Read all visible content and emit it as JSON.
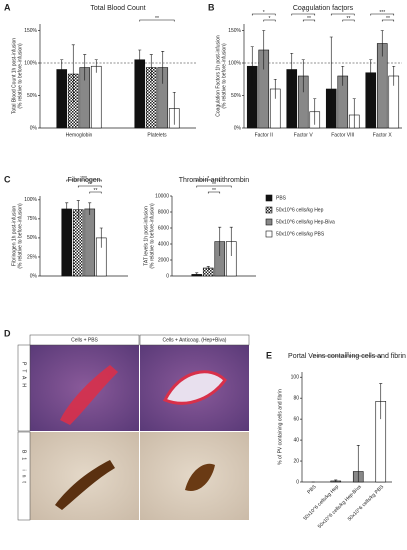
{
  "chart_data": [
    {
      "type": "bar",
      "panel": "A",
      "title": "Total Blood Count",
      "ylabel": [
        "Total Blood Count 1h post-infusion",
        "(% relative to before-infusion)"
      ],
      "categories": [
        "Hemoglobin",
        "Platelets"
      ],
      "series": [
        {
          "color": "#111111",
          "values": [
            90,
            105
          ],
          "errors": [
            15,
            15
          ]
        },
        {
          "color": "#444444",
          "pattern": "checker",
          "values": [
            83,
            93
          ],
          "errors": [
            45,
            20
          ]
        },
        {
          "color": "#888888",
          "values": [
            93,
            93
          ],
          "errors": [
            20,
            25
          ]
        },
        {
          "color": "#ffffff",
          "values": [
            95,
            30
          ],
          "errors": [
            10,
            25
          ]
        }
      ],
      "ylim": [
        0,
        160
      ],
      "yticks": [
        {
          "value": 0,
          "label": "0%"
        },
        {
          "value": 50,
          "label": "50%"
        },
        {
          "value": 100,
          "label": "100%"
        },
        {
          "value": 150,
          "label": "150%"
        }
      ],
      "reference_line": 100,
      "annotations": [
        "**"
      ]
    },
    {
      "type": "bar",
      "panel": "B",
      "title": "Coagulation factors",
      "ylabel": [
        "Coagulation Factors 1h post-infusion",
        "(% relative to before-infusion)"
      ],
      "categories": [
        "Factor II",
        "Factor V",
        "Factor VIII",
        "Factor X"
      ],
      "series": [
        {
          "color": "#111111",
          "values": [
            95,
            90,
            60,
            85
          ],
          "errors": [
            30,
            25,
            80,
            20
          ]
        },
        {
          "color": "#888888",
          "values": [
            120,
            80,
            80,
            130
          ],
          "errors": [
            30,
            25,
            15,
            20
          ]
        },
        {
          "color": "#ffffff",
          "values": [
            60,
            25,
            20,
            80
          ],
          "errors": [
            15,
            20,
            25,
            15
          ]
        }
      ],
      "ylim": [
        0,
        160
      ],
      "yticks": [
        {
          "value": 0,
          "label": "0%"
        },
        {
          "value": 50,
          "label": "50%"
        },
        {
          "value": 100,
          "label": "100%"
        },
        {
          "value": 150,
          "label": "150%"
        }
      ],
      "reference_line": 100,
      "annotations": [
        "*",
        "*",
        "*",
        "**",
        "*",
        "**",
        "***",
        "**"
      ]
    },
    {
      "type": "bar",
      "panel": "C",
      "title": "Fibrinogen",
      "ylabel": [
        "Fibrinogen 1h post-infusion",
        "(% relative to before-infusion)"
      ],
      "categories": [
        null
      ],
      "series": [
        {
          "color": "#111111",
          "values": [
            88
          ],
          "errors": [
            8
          ]
        },
        {
          "color": "#444444",
          "pattern": "checker",
          "values": [
            87
          ],
          "errors": [
            12
          ]
        },
        {
          "color": "#888888",
          "values": [
            88
          ],
          "errors": [
            8
          ]
        },
        {
          "color": "#ffffff",
          "values": [
            50
          ],
          "errors": [
            13
          ]
        }
      ],
      "ylim": [
        0,
        105
      ],
      "yticks": [
        {
          "value": 0,
          "label": "0%"
        },
        {
          "value": 25,
          "label": "25%"
        },
        {
          "value": 50,
          "label": "50%"
        },
        {
          "value": 75,
          "label": "75%"
        },
        {
          "value": 100,
          "label": "100%"
        }
      ],
      "annotations": [
        "***",
        "**",
        "**"
      ]
    },
    {
      "type": "bar",
      "title": "Thrombin-antithrombin",
      "ylabel": [
        "TAT levels 1h post-infusion",
        "(% relative to before-infusion)"
      ],
      "categories": [
        null
      ],
      "series": [
        {
          "name": "PBS",
          "color": "#111111",
          "values": [
            200
          ],
          "errors": [
            200
          ]
        },
        {
          "name": "50x10^6 cells/kg Hep",
          "color": "#444444",
          "pattern": "checker",
          "values": [
            1000
          ],
          "errors": [
            200
          ]
        },
        {
          "name": "50x10^6 cells/kg Hep-Biva",
          "color": "#888888",
          "values": [
            4300
          ],
          "errors": [
            1800
          ]
        },
        {
          "name": "50x10^6 cells/kg PBS",
          "color": "#ffffff",
          "values": [
            4300
          ],
          "errors": [
            1800
          ]
        }
      ],
      "ylim": [
        0,
        10000
      ],
      "yticks": [
        0,
        2000,
        4000,
        6000,
        8000,
        10000
      ],
      "legend": true,
      "annotations": [
        "*",
        "**",
        "**"
      ]
    },
    {
      "type": "bar",
      "panel": "E",
      "title": "Portal Veins containing cells and fibrin",
      "ylabel": [
        "% of PV containing cells and fibrin"
      ],
      "categories": [
        "PBS",
        "50x10^6 cells/kg Hep",
        "50x10^6 cells/kg Hep-Biva",
        "50x10^6 cells/kg PBS"
      ],
      "series": [
        {
          "colors": [
            "#111111",
            "#444444",
            "#888888",
            "#ffffff"
          ],
          "values": [
            0,
            1,
            10,
            77
          ],
          "errors": [
            0,
            1,
            25,
            17
          ]
        }
      ],
      "ylim": [
        0,
        105
      ],
      "yticks": [
        0,
        20,
        40,
        60,
        80,
        100
      ],
      "annotations": [
        "**"
      ]
    }
  ],
  "histology": {
    "panel": "D",
    "columns": [
      "Cells + PBS",
      "Cells + Anticoag. (Hep+Biva)"
    ],
    "rows": [
      "PTAH",
      "B1 int"
    ]
  }
}
